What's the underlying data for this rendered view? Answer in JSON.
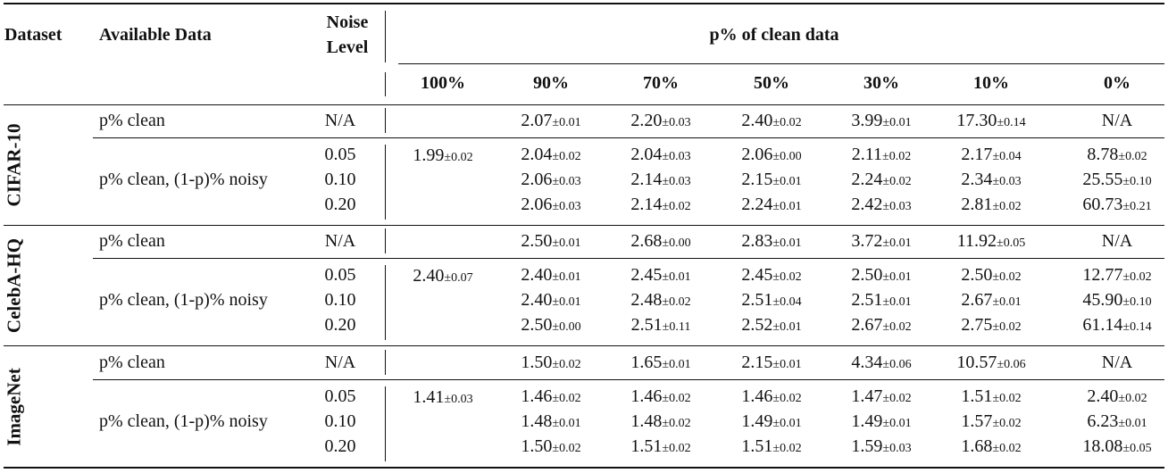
{
  "headers": {
    "dataset": "Dataset",
    "available": "Available Data",
    "noise_l1": "Noise",
    "noise_l2": "Level",
    "group": "p% of clean data",
    "cols": [
      "100%",
      "90%",
      "70%",
      "50%",
      "30%",
      "10%",
      "0%"
    ]
  },
  "blocks": [
    {
      "dataset": "CIFAR-10",
      "full": {
        "v": "1.99",
        "e": "±0.02"
      },
      "clean": {
        "label": "p% clean",
        "noise": "N/A",
        "cells": [
          [
            "2.07",
            "±0.01"
          ],
          [
            "2.20",
            "±0.03"
          ],
          [
            "2.40",
            "±0.02"
          ],
          [
            "3.99",
            "±0.01"
          ],
          [
            "17.30",
            "±0.14"
          ],
          [
            "N/A",
            ""
          ]
        ]
      },
      "noisy": {
        "label": "p% clean, (1-p)% noisy",
        "rows": [
          {
            "noise": "0.05",
            "cells": [
              [
                "2.04",
                "±0.02"
              ],
              [
                "2.04",
                "±0.03"
              ],
              [
                "2.06",
                "±0.00"
              ],
              [
                "2.11",
                "±0.02"
              ],
              [
                "2.17",
                "±0.04"
              ],
              [
                "8.78",
                "±0.02"
              ]
            ]
          },
          {
            "noise": "0.10",
            "cells": [
              [
                "2.06",
                "±0.03"
              ],
              [
                "2.14",
                "±0.03"
              ],
              [
                "2.15",
                "±0.01"
              ],
              [
                "2.24",
                "±0.02"
              ],
              [
                "2.34",
                "±0.03"
              ],
              [
                "25.55",
                "±0.10"
              ]
            ]
          },
          {
            "noise": "0.20",
            "cells": [
              [
                "2.06",
                "±0.03"
              ],
              [
                "2.14",
                "±0.02"
              ],
              [
                "2.24",
                "±0.01"
              ],
              [
                "2.42",
                "±0.03"
              ],
              [
                "2.81",
                "±0.02"
              ],
              [
                "60.73",
                "±0.21"
              ]
            ]
          }
        ]
      }
    },
    {
      "dataset": "CelebA-HQ",
      "full": {
        "v": "2.40",
        "e": "±0.07"
      },
      "clean": {
        "label": "p% clean",
        "noise": "N/A",
        "cells": [
          [
            "2.50",
            "±0.01"
          ],
          [
            "2.68",
            "±0.00"
          ],
          [
            "2.83",
            "±0.01"
          ],
          [
            "3.72",
            "±0.01"
          ],
          [
            "11.92",
            "±0.05"
          ],
          [
            "N/A",
            ""
          ]
        ]
      },
      "noisy": {
        "label": "p% clean, (1-p)% noisy",
        "rows": [
          {
            "noise": "0.05",
            "cells": [
              [
                "2.40",
                "±0.01"
              ],
              [
                "2.45",
                "±0.01"
              ],
              [
                "2.45",
                "±0.02"
              ],
              [
                "2.50",
                "±0.01"
              ],
              [
                "2.50",
                "±0.02"
              ],
              [
                "12.77",
                "±0.02"
              ]
            ]
          },
          {
            "noise": "0.10",
            "cells": [
              [
                "2.40",
                "±0.01"
              ],
              [
                "2.48",
                "±0.02"
              ],
              [
                "2.51",
                "±0.04"
              ],
              [
                "2.51",
                "±0.01"
              ],
              [
                "2.67",
                "±0.01"
              ],
              [
                "45.90",
                "±0.10"
              ]
            ]
          },
          {
            "noise": "0.20",
            "cells": [
              [
                "2.50",
                "±0.00"
              ],
              [
                "2.51",
                "±0.11"
              ],
              [
                "2.52",
                "±0.01"
              ],
              [
                "2.67",
                "±0.02"
              ],
              [
                "2.75",
                "±0.02"
              ],
              [
                "61.14",
                "±0.14"
              ]
            ]
          }
        ]
      }
    },
    {
      "dataset": "ImageNet",
      "full": {
        "v": "1.41",
        "e": "±0.03"
      },
      "clean": {
        "label": "p% clean",
        "noise": "N/A",
        "cells": [
          [
            "1.50",
            "±0.02"
          ],
          [
            "1.65",
            "±0.01"
          ],
          [
            "2.15",
            "±0.01"
          ],
          [
            "4.34",
            "±0.06"
          ],
          [
            "10.57",
            "±0.06"
          ],
          [
            "N/A",
            ""
          ]
        ]
      },
      "noisy": {
        "label": "p% clean, (1-p)% noisy",
        "rows": [
          {
            "noise": "0.05",
            "cells": [
              [
                "1.46",
                "±0.02"
              ],
              [
                "1.46",
                "±0.02"
              ],
              [
                "1.46",
                "±0.02"
              ],
              [
                "1.47",
                "±0.02"
              ],
              [
                "1.51",
                "±0.02"
              ],
              [
                "2.40",
                "±0.02"
              ]
            ]
          },
          {
            "noise": "0.10",
            "cells": [
              [
                "1.48",
                "±0.01"
              ],
              [
                "1.48",
                "±0.02"
              ],
              [
                "1.49",
                "±0.01"
              ],
              [
                "1.49",
                "±0.01"
              ],
              [
                "1.57",
                "±0.02"
              ],
              [
                "6.23",
                "±0.01"
              ]
            ]
          },
          {
            "noise": "0.20",
            "cells": [
              [
                "1.50",
                "±0.02"
              ],
              [
                "1.51",
                "±0.02"
              ],
              [
                "1.51",
                "±0.02"
              ],
              [
                "1.59",
                "±0.03"
              ],
              [
                "1.68",
                "±0.02"
              ],
              [
                "18.08",
                "±0.05"
              ]
            ]
          }
        ]
      }
    }
  ]
}
